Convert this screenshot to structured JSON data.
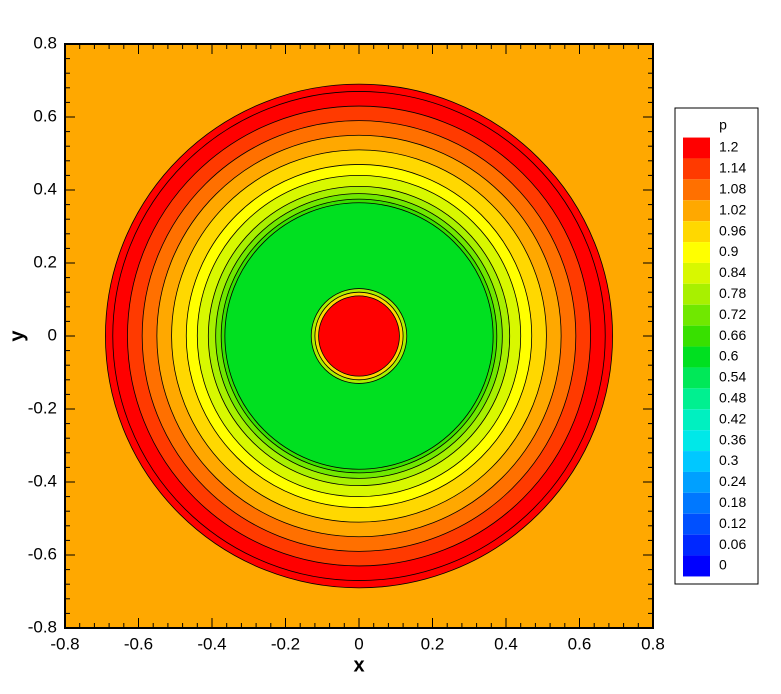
{
  "chart_data": {
    "type": "contour",
    "x_label": "x",
    "y_label": "y",
    "xlim": [
      -0.8,
      0.8
    ],
    "ylim": [
      -0.8,
      0.8
    ],
    "xticks": [
      -0.8,
      -0.6,
      -0.4,
      -0.2,
      0,
      0.2,
      0.4,
      0.6,
      0.8
    ],
    "yticks": [
      -0.8,
      -0.6,
      -0.4,
      -0.2,
      0,
      0.2,
      0.4,
      0.6,
      0.8
    ],
    "background_p": 1.02,
    "radial_profile": {
      "r": [
        0.69,
        0.67,
        0.63,
        0.59,
        0.55,
        0.51,
        0.47,
        0.44,
        0.41,
        0.39,
        0.375,
        0.365,
        0.13,
        0.12,
        0.11
      ],
      "p": [
        1.2,
        1.17,
        1.14,
        1.08,
        1.02,
        0.96,
        0.9,
        0.84,
        0.78,
        0.72,
        0.66,
        0.6,
        0.78,
        0.96,
        1.2
      ]
    },
    "colorbar": {
      "title": "p",
      "levels": [
        1.2,
        1.14,
        1.08,
        1.02,
        0.96,
        0.9,
        0.84,
        0.78,
        0.72,
        0.66,
        0.6,
        0.54,
        0.48,
        0.42,
        0.36,
        0.3,
        0.24,
        0.18,
        0.12,
        0.06,
        0
      ],
      "colors": [
        "#ff0000",
        "#ff3a00",
        "#ff7000",
        "#ffa800",
        "#ffd800",
        "#ffff00",
        "#d8f800",
        "#a8f000",
        "#70e800",
        "#38e000",
        "#00e020",
        "#00e858",
        "#00f090",
        "#00f0c0",
        "#00e8e8",
        "#00c8ff",
        "#00a0ff",
        "#0078ff",
        "#0050ff",
        "#0028ff",
        "#0000ff"
      ]
    }
  }
}
